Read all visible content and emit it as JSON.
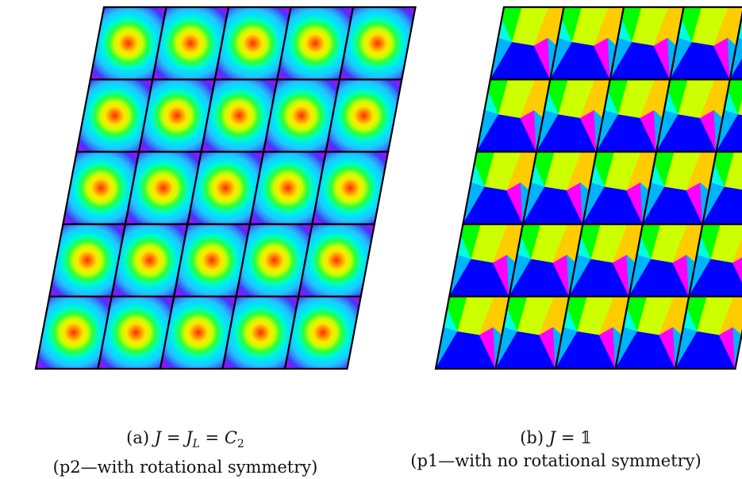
{
  "panels": [
    {
      "id": "a",
      "tile_type": "radial",
      "colors": [
        "#ff2a00",
        "#ff8a00",
        "#ffe600",
        "#c8ff00",
        "#2eff3a",
        "#00ffb8",
        "#00e2ff",
        "#22c6ff",
        "#2d8bff",
        "#4a33ff",
        "#8a18ff",
        "#c000ff"
      ],
      "caption": {
        "label": "(a)",
        "symbol": "J",
        "eq": "=",
        "sub_base": "J",
        "sub_index": "L",
        "eq2": "=",
        "group_base": "C",
        "group_index": "2",
        "subtitle": "(p2—with rotational symmetry)"
      }
    },
    {
      "id": "b",
      "tile_type": "sectors",
      "colors": {
        "green": "#00ff00",
        "yellow_green": "#ccff00",
        "orange": "#ffcc00",
        "magenta": "#ff00ff",
        "blue": "#0000ff",
        "sky": "#00b3ff",
        "cyan": "#00ffdd"
      },
      "caption": {
        "label": "(b)",
        "symbol": "J",
        "eq": "=",
        "identity": "𝟙",
        "subtitle": "(p1—with no rotational symmetry)"
      }
    }
  ]
}
